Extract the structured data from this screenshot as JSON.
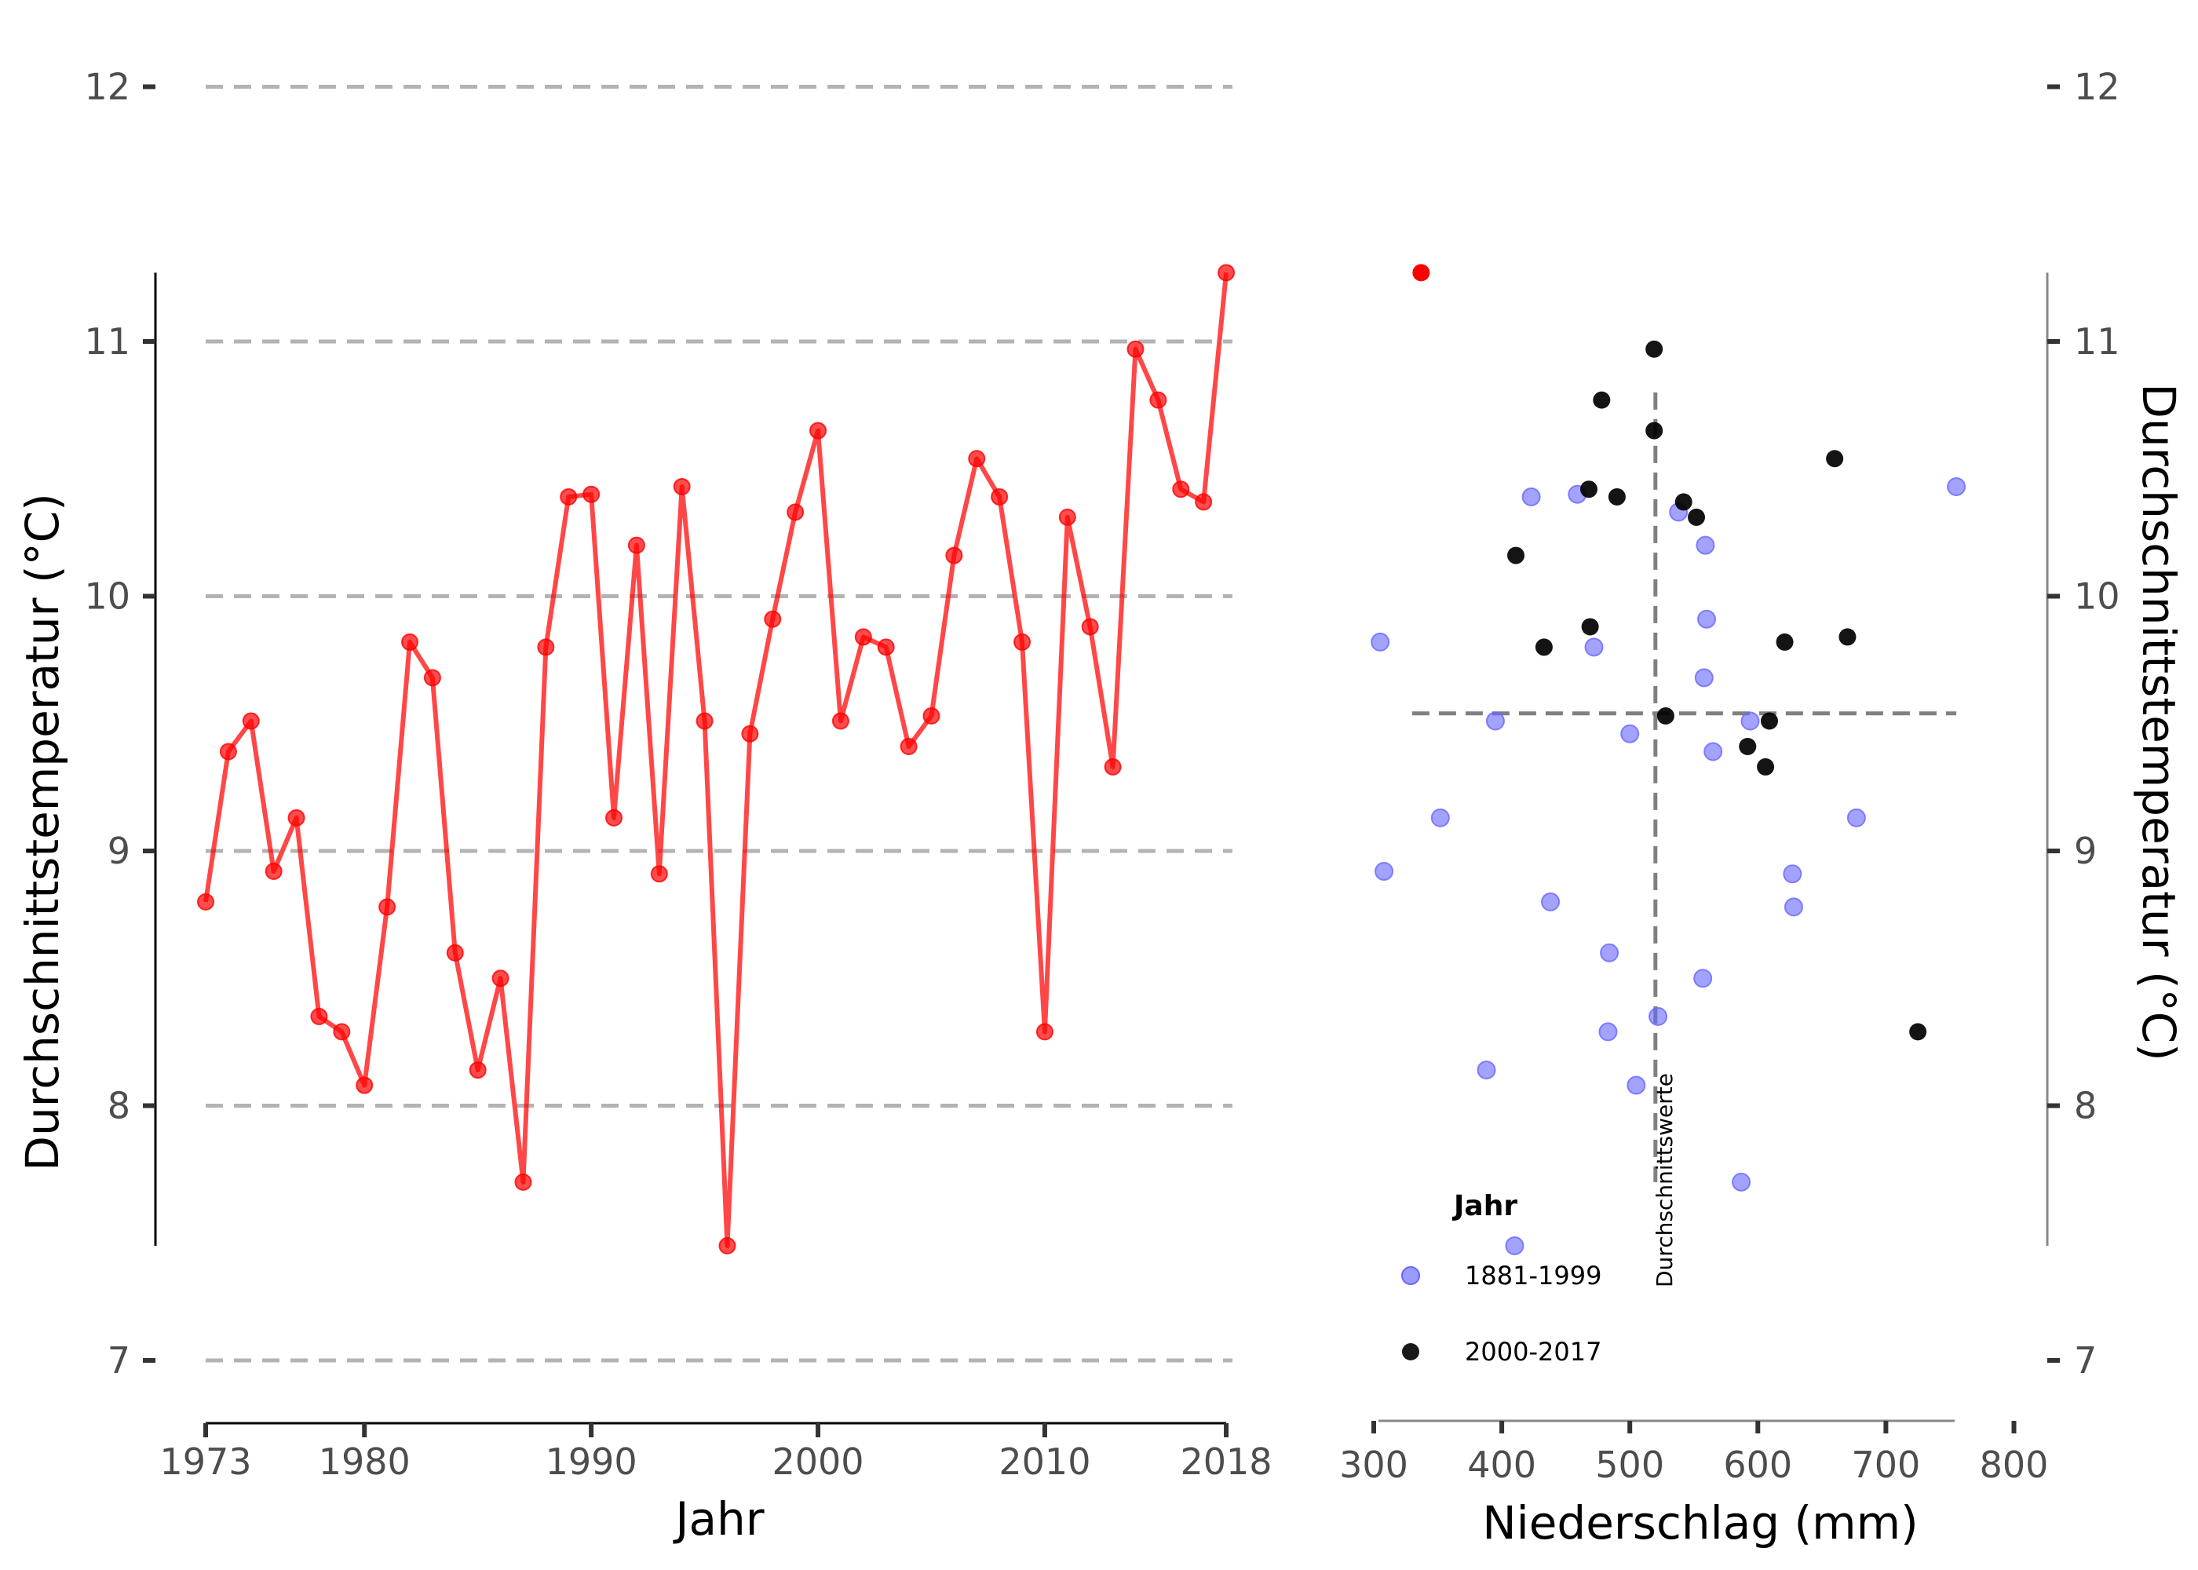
{
  "colors": {
    "line": "#ff0000",
    "historic": "#6666ff",
    "recent": "#000000",
    "highlight": "#ff0000",
    "grid": "#b3b3b3",
    "mean_lines": "#808080",
    "axis": "#000000"
  },
  "chart_data": [
    {
      "type": "line",
      "title": "",
      "xlabel": "Jahr",
      "ylabel": "Durchschnittstemperatur (°C)",
      "xlim": [
        1973,
        2018
      ],
      "ylim": [
        7,
        12
      ],
      "x_ticks": [
        1973,
        1980,
        1990,
        2000,
        2010,
        2018
      ],
      "y_ticks": [
        7,
        8,
        9,
        10,
        11,
        12
      ],
      "grid": "horizontal dashed",
      "series": [
        {
          "x": [
            1973,
            1974,
            1975,
            1976,
            1977,
            1978,
            1979,
            1980,
            1981,
            1982,
            1983,
            1984,
            1985,
            1986,
            1987,
            1988,
            1989,
            1990,
            1991,
            1992,
            1993,
            1994,
            1995,
            1996,
            1997,
            1998,
            1999,
            2000,
            2001,
            2002,
            2003,
            2004,
            2005,
            2006,
            2007,
            2008,
            2009,
            2010,
            2011,
            2012,
            2013,
            2014,
            2015,
            2016,
            2017,
            2018
          ],
          "values": [
            8.8,
            9.39,
            9.51,
            8.92,
            9.13,
            8.35,
            8.29,
            8.08,
            8.78,
            9.82,
            9.68,
            8.6,
            8.14,
            8.5,
            7.7,
            9.8,
            10.39,
            10.4,
            9.13,
            10.2,
            8.91,
            10.43,
            9.51,
            7.45,
            9.46,
            9.91,
            10.33,
            10.65,
            9.51,
            9.84,
            9.8,
            9.41,
            9.53,
            10.16,
            10.54,
            10.39,
            9.82,
            8.29,
            10.31,
            9.88,
            9.33,
            10.97,
            10.77,
            10.42,
            10.37,
            11.27
          ]
        }
      ]
    },
    {
      "type": "scatter",
      "title": "",
      "xlabel": "Niederschlag (mm)",
      "ylabel": "Durchschnittstemperatur (°C)",
      "xlim": [
        300,
        800
      ],
      "ylim": [
        7,
        12
      ],
      "x_ticks": [
        300,
        400,
        500,
        600,
        700,
        800
      ],
      "y_ticks": [
        7,
        8,
        9,
        10,
        11,
        12
      ],
      "mean_precipitation": 520,
      "mean_temperature": 9.54,
      "annotation": "Durchschnittswerte",
      "legend": {
        "title": "Jahr",
        "position": "bottom-left",
        "entries": [
          "1881-1999",
          "2000-2017"
        ]
      },
      "highlight_point": {
        "x": 337,
        "y": 11.27
      },
      "series": [
        {
          "name": "1881-1999",
          "points": [
            [
              305,
              9.82
            ],
            [
              308,
              8.92
            ],
            [
              352,
              9.13
            ],
            [
              388,
              8.14
            ],
            [
              395,
              9.51
            ],
            [
              410,
              7.45
            ],
            [
              423,
              10.39
            ],
            [
              438,
              8.8
            ],
            [
              459,
              10.4
            ],
            [
              472,
              9.8
            ],
            [
              483,
              8.29
            ],
            [
              484,
              8.6
            ],
            [
              500,
              9.46
            ],
            [
              505,
              8.08
            ],
            [
              522,
              8.35
            ],
            [
              538,
              10.33
            ],
            [
              557,
              8.5
            ],
            [
              558,
              9.68
            ],
            [
              559,
              10.2
            ],
            [
              560,
              9.91
            ],
            [
              565,
              9.39
            ],
            [
              587,
              7.7
            ],
            [
              594,
              9.51
            ],
            [
              627,
              8.91
            ],
            [
              628,
              8.78
            ],
            [
              677,
              9.13
            ],
            [
              755,
              10.43
            ]
          ]
        },
        {
          "name": "2000-2017",
          "points": [
            [
              411,
              10.16
            ],
            [
              433,
              9.8
            ],
            [
              468,
              10.42
            ],
            [
              469,
              9.88
            ],
            [
              478,
              10.77
            ],
            [
              490,
              10.39
            ],
            [
              519,
              10.97
            ],
            [
              519,
              10.65
            ],
            [
              528,
              9.53
            ],
            [
              542,
              10.37
            ],
            [
              552,
              10.31
            ],
            [
              592,
              9.41
            ],
            [
              606,
              9.33
            ],
            [
              609,
              9.51
            ],
            [
              621,
              9.82
            ],
            [
              660,
              10.54
            ],
            [
              670,
              9.84
            ],
            [
              725,
              8.29
            ]
          ]
        }
      ]
    }
  ]
}
